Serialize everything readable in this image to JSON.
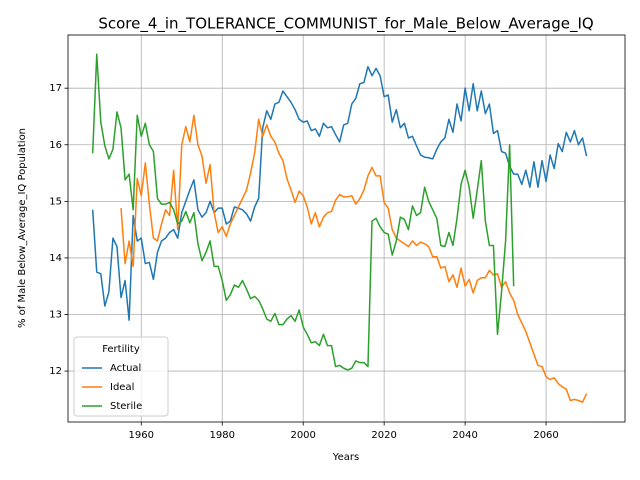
{
  "chart_data": {
    "type": "line",
    "title": "Score_4_in_TOLERANCE_COMMUNIST_for_Male_Below_Average_IQ",
    "xlabel": "Years",
    "ylabel": "% of Male Below_Average_IQ Population",
    "x": [
      1948,
      1949,
      1950,
      1951,
      1952,
      1953,
      1954,
      1955,
      1956,
      1957,
      1958,
      1959,
      1960,
      1961,
      1962,
      1963,
      1964,
      1965,
      1966,
      1967,
      1968,
      1969,
      1970,
      1971,
      1972,
      1973,
      1974,
      1975,
      1976,
      1977,
      1978,
      1979,
      1980,
      1981,
      1982,
      1983,
      1984,
      1985,
      1986,
      1987,
      1988,
      1989,
      1990,
      1991,
      1992,
      1993,
      1994,
      1995,
      1996,
      1997,
      1998,
      1999,
      2000,
      2001,
      2002,
      2003,
      2004,
      2005,
      2006,
      2007,
      2008,
      2009,
      2010,
      2011,
      2012,
      2013,
      2014,
      2015,
      2016,
      2017,
      2018,
      2019,
      2020,
      2021,
      2022,
      2023,
      2024,
      2025,
      2026,
      2027,
      2028,
      2029,
      2030,
      2031,
      2032,
      2033,
      2034,
      2035,
      2036,
      2037,
      2038,
      2039,
      2040,
      2041,
      2042,
      2043,
      2044,
      2045,
      2046,
      2047,
      2048,
      2049,
      2050,
      2051,
      2052,
      2053,
      2054,
      2055,
      2056,
      2057,
      2058,
      2059,
      2060,
      2061,
      2062,
      2063,
      2064,
      2065,
      2066,
      2067,
      2068,
      2069,
      2070
    ],
    "series": [
      {
        "name": "Actual",
        "color": "#1f77b4",
        "values": [
          14.85,
          13.75,
          13.72,
          13.15,
          13.4,
          14.35,
          14.2,
          13.3,
          13.6,
          12.9,
          14.75,
          14.3,
          14.35,
          13.9,
          13.92,
          13.62,
          14.1,
          14.3,
          14.35,
          14.45,
          14.5,
          14.35,
          14.8,
          15.0,
          15.2,
          15.38,
          14.85,
          14.72,
          14.8,
          15.0,
          14.8,
          14.88,
          14.88,
          14.6,
          14.65,
          14.9,
          14.88,
          14.85,
          14.78,
          14.65,
          14.9,
          15.05,
          16.3,
          16.6,
          16.45,
          16.72,
          16.75,
          16.95,
          16.85,
          16.75,
          16.62,
          16.45,
          16.4,
          16.42,
          16.25,
          16.28,
          16.15,
          16.38,
          16.3,
          16.32,
          16.18,
          16.05,
          16.35,
          16.38,
          16.72,
          16.82,
          17.08,
          17.1,
          17.38,
          17.22,
          17.35,
          17.22,
          16.85,
          16.88,
          16.4,
          16.62,
          16.3,
          16.38,
          16.12,
          16.15,
          15.98,
          15.82,
          15.78,
          15.77,
          15.75,
          15.92,
          16.05,
          16.12,
          16.45,
          16.22,
          16.72,
          16.42,
          17.0,
          16.6,
          17.08,
          16.6,
          16.95,
          16.55,
          16.72,
          16.2,
          16.25,
          15.88,
          15.85,
          15.62,
          15.48,
          15.48,
          15.3,
          15.55,
          15.25,
          15.7,
          15.25,
          15.72,
          15.35,
          15.82,
          15.58,
          16.02,
          15.88,
          16.22,
          16.05,
          16.25,
          16.0,
          16.12,
          15.8
        ]
      },
      {
        "name": "Ideal",
        "color": "#ff7f0e",
        "values": [
          null,
          null,
          null,
          null,
          null,
          null,
          null,
          14.88,
          13.9,
          14.3,
          13.85,
          15.4,
          15.1,
          15.68,
          14.95,
          14.35,
          14.3,
          14.6,
          14.85,
          14.75,
          15.55,
          14.5,
          16.0,
          16.32,
          16.05,
          16.52,
          16.0,
          15.8,
          15.32,
          15.65,
          14.8,
          14.45,
          14.55,
          14.38,
          14.6,
          14.75,
          14.9,
          15.05,
          15.2,
          15.5,
          15.85,
          16.45,
          16.15,
          16.35,
          16.15,
          16.05,
          15.85,
          15.72,
          15.4,
          15.2,
          14.98,
          15.18,
          15.1,
          14.9,
          14.6,
          14.8,
          14.55,
          14.72,
          14.8,
          14.82,
          15.02,
          15.12,
          15.08,
          15.08,
          15.1,
          14.95,
          15.05,
          15.2,
          15.45,
          15.6,
          15.45,
          15.45,
          14.98,
          14.88,
          14.5,
          14.35,
          14.3,
          14.25,
          14.2,
          14.3,
          14.22,
          14.28,
          14.25,
          14.2,
          14.02,
          14.02,
          13.82,
          13.85,
          13.58,
          13.7,
          13.48,
          13.82,
          13.5,
          13.62,
          13.38,
          13.6,
          13.65,
          13.65,
          13.78,
          13.7,
          13.72,
          13.48,
          13.58,
          13.38,
          13.25,
          13.0,
          12.85,
          12.7,
          12.5,
          12.3,
          12.1,
          12.08,
          11.9,
          11.85,
          11.88,
          11.78,
          11.72,
          11.68,
          11.48,
          11.5,
          11.48,
          11.45,
          11.6
        ]
      },
      {
        "name": "Sterile",
        "color": "#2ca02c",
        "values": [
          15.85,
          17.6,
          16.4,
          15.98,
          15.75,
          15.92,
          16.58,
          16.3,
          15.38,
          15.48,
          14.85,
          16.52,
          16.15,
          16.38,
          16.0,
          15.88,
          15.05,
          14.95,
          14.95,
          14.98,
          14.85,
          14.6,
          14.65,
          14.82,
          14.62,
          14.8,
          14.25,
          13.95,
          14.1,
          14.3,
          13.85,
          13.85,
          13.6,
          13.25,
          13.35,
          13.52,
          13.48,
          13.6,
          13.45,
          13.28,
          13.32,
          13.25,
          13.1,
          12.92,
          12.88,
          13.02,
          12.82,
          12.82,
          12.92,
          12.98,
          12.88,
          13.08,
          12.78,
          12.65,
          12.5,
          12.52,
          12.45,
          12.65,
          12.45,
          12.45,
          12.08,
          12.1,
          12.05,
          12.02,
          12.05,
          12.18,
          12.15,
          12.15,
          12.08,
          14.65,
          14.7,
          14.55,
          14.45,
          14.42,
          14.05,
          14.3,
          14.72,
          14.68,
          14.5,
          14.92,
          14.75,
          14.8,
          15.25,
          15.0,
          14.85,
          14.7,
          14.22,
          14.2,
          14.45,
          14.22,
          14.7,
          15.3,
          15.55,
          15.25,
          14.7,
          15.2,
          15.72,
          14.65,
          14.22,
          14.22,
          12.65,
          13.4,
          14.3,
          16.0,
          13.5,
          null,
          null,
          null,
          null,
          null,
          null,
          null,
          null,
          null,
          null,
          null,
          null,
          null,
          null,
          null,
          null,
          null,
          null
        ]
      }
    ],
    "xlim": [
      1941.9,
      2079.5
    ],
    "ylim": [
      11.1,
      17.94
    ],
    "xticks": [
      1960,
      1980,
      2000,
      2020,
      2040,
      2060
    ],
    "yticks": [
      12,
      13,
      14,
      15,
      16,
      17
    ],
    "grid": true,
    "legend": {
      "title": "Fertility",
      "loc": "lower left"
    }
  }
}
